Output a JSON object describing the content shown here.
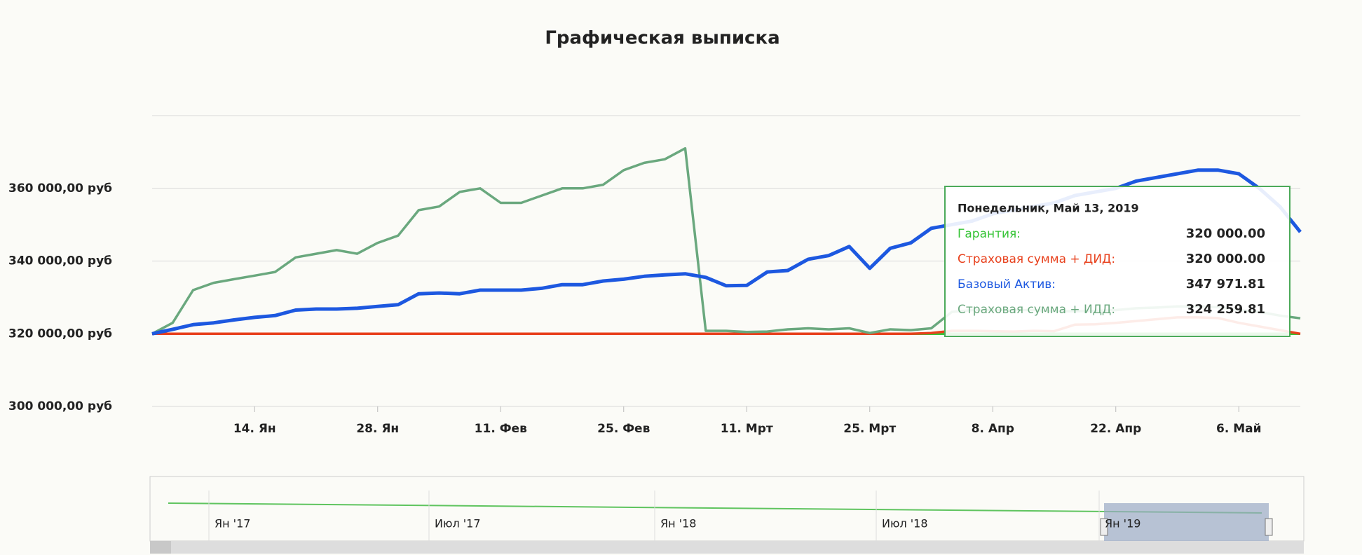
{
  "chart_data": {
    "type": "line",
    "title": "Графическая выписка",
    "categories": [
      null,
      null,
      null,
      null,
      null,
      "14. Ян",
      null,
      null,
      null,
      null,
      null,
      "28. Ян",
      null,
      null,
      null,
      null,
      null,
      "11. Фев",
      null,
      null,
      null,
      null,
      null,
      "25. Фев",
      null,
      null,
      null,
      null,
      null,
      "11. Мрт",
      null,
      null,
      null,
      null,
      null,
      "25. Мрт",
      null,
      null,
      null,
      null,
      null,
      "8. Апр",
      null,
      null,
      null,
      null,
      null,
      "22. Апр",
      null,
      null,
      null,
      null,
      null,
      "6. Май",
      null,
      null,
      null
    ],
    "ylim": [
      300000,
      380000
    ],
    "yticks": [
      {
        "value": 300000,
        "label": "300 000,00 руб"
      },
      {
        "value": 320000,
        "label": "320 000,00 руб"
      },
      {
        "value": 340000,
        "label": "340 000,00 руб"
      },
      {
        "value": 360000,
        "label": "360 000,00 руб"
      }
    ],
    "grid": true,
    "series": [
      {
        "name": "Гарантия:",
        "color": "#36c436",
        "values": [
          320000,
          320000,
          320000,
          320000,
          320000,
          320000,
          320000,
          320000,
          320000,
          320000,
          320000,
          320000,
          320000,
          320000,
          320000,
          320000,
          320000,
          320000,
          320000,
          320000,
          320000,
          320000,
          320000,
          320000,
          320000,
          320000,
          320000,
          320000,
          320000,
          320000,
          320000,
          320000,
          320000,
          320000,
          320000,
          320000,
          320000,
          320000,
          320000,
          320000,
          320000,
          320000,
          320000,
          320000,
          320000,
          320000,
          320000,
          320000,
          320000,
          320000,
          320000,
          320000,
          320000,
          320000,
          320000,
          320000,
          320000
        ]
      },
      {
        "name": "Страховая сумма + ДИД:",
        "color": "#e8401c",
        "values": [
          320000,
          320000,
          320000,
          320000,
          320000,
          320000,
          320000,
          320000,
          320000,
          320000,
          320000,
          320000,
          320000,
          320000,
          320000,
          320000,
          320000,
          320000,
          320000,
          320000,
          320000,
          320000,
          320000,
          320000,
          320000,
          320000,
          320000,
          320000,
          320000,
          320000,
          320000,
          320000,
          320000,
          320000,
          320000,
          320000,
          320000,
          320000,
          320200,
          320800,
          320800,
          320700,
          320600,
          320800,
          320700,
          322500,
          322600,
          323000,
          323500,
          324000,
          324500,
          324500,
          324300,
          323000,
          322000,
          321000,
          320000
        ]
      },
      {
        "name": "Страховая сумма + ИДД:",
        "color": "#6aa87e",
        "values": [
          320000,
          323000,
          332000,
          334000,
          335000,
          336000,
          337000,
          341000,
          342000,
          343000,
          342000,
          345000,
          347000,
          354000,
          355000,
          359000,
          360000,
          356000,
          356000,
          358000,
          360000,
          360000,
          361000,
          365000,
          367000,
          368000,
          371000,
          320800,
          320800,
          320500,
          320600,
          321200,
          321500,
          321200,
          321500,
          320200,
          321200,
          321000,
          321500,
          326000,
          326500,
          326500,
          326500,
          326500,
          326200,
          326200,
          326300,
          326500,
          327000,
          327200,
          327500,
          327500,
          327300,
          326500,
          326000,
          325000,
          324259.81
        ]
      },
      {
        "name": "Базовый Актив:",
        "color": "#1d58e0",
        "values": [
          320000,
          321200,
          322500,
          323000,
          323800,
          324500,
          325000,
          326500,
          326800,
          326800,
          327000,
          327500,
          328000,
          331000,
          331200,
          331000,
          332000,
          332000,
          332000,
          332500,
          333500,
          333500,
          334500,
          335000,
          335800,
          336200,
          336500,
          335500,
          333200,
          333300,
          337000,
          337400,
          340500,
          341500,
          344000,
          338000,
          343500,
          345000,
          349000,
          350000,
          351000,
          353000,
          354000,
          355000,
          356000,
          358000,
          359000,
          360000,
          362000,
          363000,
          364000,
          365000,
          365000,
          364000,
          360000,
          355000,
          347971.81
        ]
      }
    ],
    "tooltip": {
      "title": "Понедельник, Май 13, 2019",
      "order": [
        0,
        1,
        3,
        2
      ],
      "values": [
        "320 000.00",
        "320 000.00",
        "347 971.81",
        "324 259.81"
      ]
    },
    "navigator": {
      "labels": [
        "Ян '17",
        "Июл '17",
        "Ян '18",
        "Июл '18",
        "Ян '19"
      ]
    }
  }
}
